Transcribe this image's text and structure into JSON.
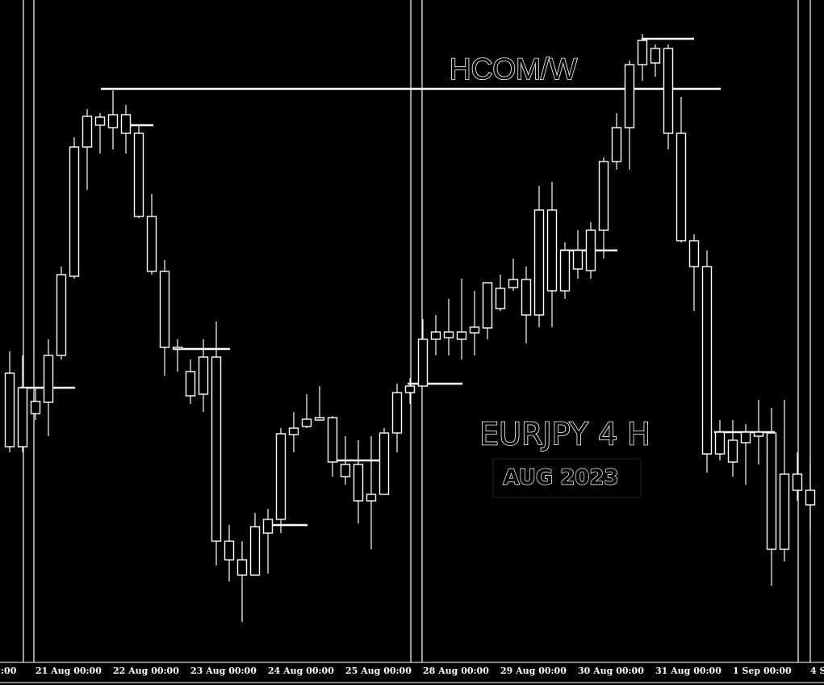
{
  "chart_data": {
    "type": "candlestick",
    "title": "EURJPY 4 H",
    "subtitle": "AUG 2023",
    "annotation": "HCOM/W",
    "color": "#ffffff",
    "ylim": [
      156.14,
      160.24
    ],
    "open": [
      157.93,
      157.475,
      157.755,
      157.75,
      158.04,
      158.53,
      159.33,
      159.515,
      159.45,
      159.53,
      159.415,
      158.9,
      158.56,
      158.09,
      157.79,
      157.8,
      158.03,
      156.89,
      156.775,
      156.68,
      156.94,
      157.025,
      157.55,
      157.6,
      157.64,
      157.655,
      157.365,
      157.365,
      157.14,
      157.18,
      157.56,
      157.81,
      157.85,
      158.14,
      158.15,
      158.185,
      158.18,
      158.21,
      158.33,
      158.46,
      158.51,
      158.29,
      158.94,
      158.44,
      158.69,
      158.565,
      158.815,
      159.24,
      159.45,
      159.84,
      159.94,
      159.94,
      159.415,
      158.75,
      158.59,
      157.43,
      157.515,
      157.5,
      157.565,
      157.56,
      156.84,
      157.305,
      157.205
    ],
    "high": [
      158.065,
      158.04,
      157.84,
      158.14,
      158.59,
      159.39,
      159.565,
      159.54,
      159.68,
      159.59,
      159.465,
      159.04,
      158.63,
      158.14,
      158.015,
      158.14,
      158.25,
      156.99,
      156.89,
      157.065,
      157.09,
      157.59,
      157.69,
      157.8,
      157.85,
      157.665,
      157.54,
      157.515,
      157.54,
      157.59,
      157.865,
      157.9,
      158.265,
      158.29,
      158.39,
      158.515,
      158.44,
      158.49,
      158.54,
      158.64,
      158.59,
      159.09,
      159.115,
      158.74,
      158.815,
      158.865,
      159.265,
      159.54,
      159.865,
      160.03,
      159.965,
      159.965,
      159.64,
      158.79,
      158.69,
      157.64,
      157.64,
      157.615,
      157.765,
      157.715,
      157.765,
      157.44,
      157.365
    ],
    "low": [
      157.44,
      157.44,
      157.64,
      157.54,
      158.015,
      158.515,
      159.065,
      159.29,
      159.315,
      159.29,
      158.89,
      158.54,
      157.915,
      157.94,
      157.74,
      157.69,
      156.74,
      156.64,
      156.39,
      156.68,
      156.69,
      156.94,
      157.44,
      157.59,
      157.64,
      157.29,
      157.24,
      157.0,
      156.84,
      157.18,
      157.44,
      157.74,
      157.85,
      158.04,
      158.04,
      158.015,
      158.04,
      158.14,
      158.315,
      158.44,
      158.115,
      158.215,
      158.215,
      158.39,
      158.515,
      158.515,
      158.64,
      159.19,
      159.19,
      159.74,
      159.765,
      159.315,
      158.74,
      158.315,
      157.315,
      157.39,
      157.29,
      157.24,
      157.365,
      156.615,
      156.765,
      157.14,
      156.965
    ],
    "close": [
      157.475,
      157.84,
      157.68,
      158.04,
      158.54,
      159.33,
      159.52,
      159.465,
      159.53,
      159.415,
      158.9,
      158.56,
      158.09,
      158.08,
      157.94,
      158.03,
      156.89,
      156.775,
      156.68,
      156.98,
      157.025,
      157.555,
      157.59,
      157.645,
      157.655,
      157.38,
      157.29,
      157.14,
      157.18,
      157.56,
      157.81,
      157.85,
      158.14,
      158.185,
      158.185,
      158.14,
      158.215,
      158.49,
      158.455,
      158.51,
      158.29,
      158.94,
      158.44,
      158.69,
      158.575,
      158.815,
      159.24,
      159.45,
      159.84,
      159.99,
      159.85,
      159.415,
      158.75,
      158.59,
      157.43,
      157.565,
      157.38,
      157.565,
      157.54,
      156.84,
      157.305,
      157.205,
      157.115
    ],
    "levels": [
      159.69,
      157.84,
      159.465,
      158.08,
      156.99,
      157.39,
      157.865,
      158.69,
      160.0,
      157.565
    ],
    "xlabels": [
      ":00",
      "21 Aug 00:00",
      "22 Aug 00:00",
      "23 Aug 00:00",
      "24 Aug 00:00",
      "25 Aug 00:00",
      "28 Aug 00:00",
      "29 Aug 00:00",
      "30 Aug 00:00",
      "31 Aug 00:00",
      "1 Sep 00:00",
      "4 S"
    ]
  }
}
